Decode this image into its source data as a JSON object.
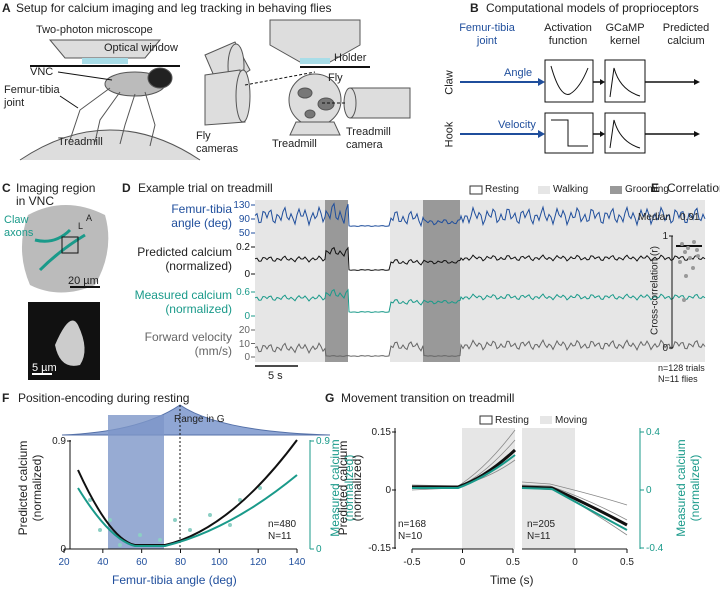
{
  "A": {
    "label": "A",
    "title": "Setup for calcium imaging and leg tracking in behaving flies",
    "microscope": "Two-photon microscope",
    "window": "Optical window",
    "vnc": "VNC",
    "joint": "Femur-tibia joint",
    "treadmill": "Treadmill",
    "holder": "Holder",
    "fly": "Fly",
    "fly_cameras": "Fly cameras",
    "treadmill_side": "Treadmill",
    "treadmill_camera": "Treadmill camera"
  },
  "B": {
    "label": "B",
    "title": "Computational models of proprioceptors",
    "joint": "Femur-tibia joint",
    "activation": "Activation function",
    "kernel": "GCaMP kernel",
    "predicted": "Predicted calcium",
    "claw": "Claw",
    "hook": "Hook",
    "angle": "Angle",
    "velocity": "Velocity"
  },
  "C": {
    "label": "C",
    "title": "Imaging region in VNC",
    "claw": "Claw axons",
    "axis_a": "A",
    "axis_l": "L",
    "scale_large": "20 µm",
    "scale_small": "5 µm"
  },
  "D": {
    "label": "D",
    "title": "Example trial on treadmill",
    "legend": [
      "Resting",
      "Walking",
      "Grooming"
    ],
    "rows": [
      {
        "label": "Femur-tibia angle (deg)",
        "ticks": [
          130,
          90,
          50
        ]
      },
      {
        "label": "Predicted calcium (normalized)",
        "ticks": [
          0.2,
          0
        ]
      },
      {
        "label": "Measured calcium (normalized)",
        "ticks": [
          0.6,
          0
        ]
      },
      {
        "label": "Forward velocity (mm/s)",
        "ticks": [
          20,
          10,
          0
        ]
      }
    ],
    "scale": "5 s"
  },
  "E": {
    "label": "E",
    "title": "Correlation",
    "median_label": "Median",
    "median": "0.91",
    "ylabel": "Cross-correlation (r)",
    "yticks": [
      1,
      0
    ],
    "n": "n=128 trials",
    "N": "N=11 flies"
  },
  "F": {
    "label": "F",
    "title": "Position-encoding during resting",
    "ylabel": "Predicted calcium (normalized)",
    "y2label": "Measured calcium (normalized)",
    "xlabel": "Femur-tibia angle (deg)",
    "xticks": [
      20,
      40,
      60,
      80,
      100,
      120,
      140
    ],
    "yticks": [
      0.9,
      0
    ],
    "y2ticks": [
      0.9,
      0
    ],
    "range": "Range in G",
    "n": "n=480",
    "N": "N=11"
  },
  "G": {
    "label": "G",
    "title": "Movement transition on treadmill",
    "legend": [
      "Resting",
      "Moving"
    ],
    "ylabel": "Predicted calcium (normalized)",
    "y2label": "Measured calcium (normalized)",
    "yticks": [
      0.15,
      0,
      -0.15
    ],
    "y2ticks": [
      0.4,
      0,
      -0.4
    ],
    "xticks_left": [
      -0.5,
      0,
      0.5
    ],
    "xticks_right": [
      0,
      0.5
    ],
    "xlabel": "Time (s)",
    "n_left": "n=168",
    "N_left": "N=10",
    "n_right": "n=205",
    "N_right": "N=11"
  }
}
